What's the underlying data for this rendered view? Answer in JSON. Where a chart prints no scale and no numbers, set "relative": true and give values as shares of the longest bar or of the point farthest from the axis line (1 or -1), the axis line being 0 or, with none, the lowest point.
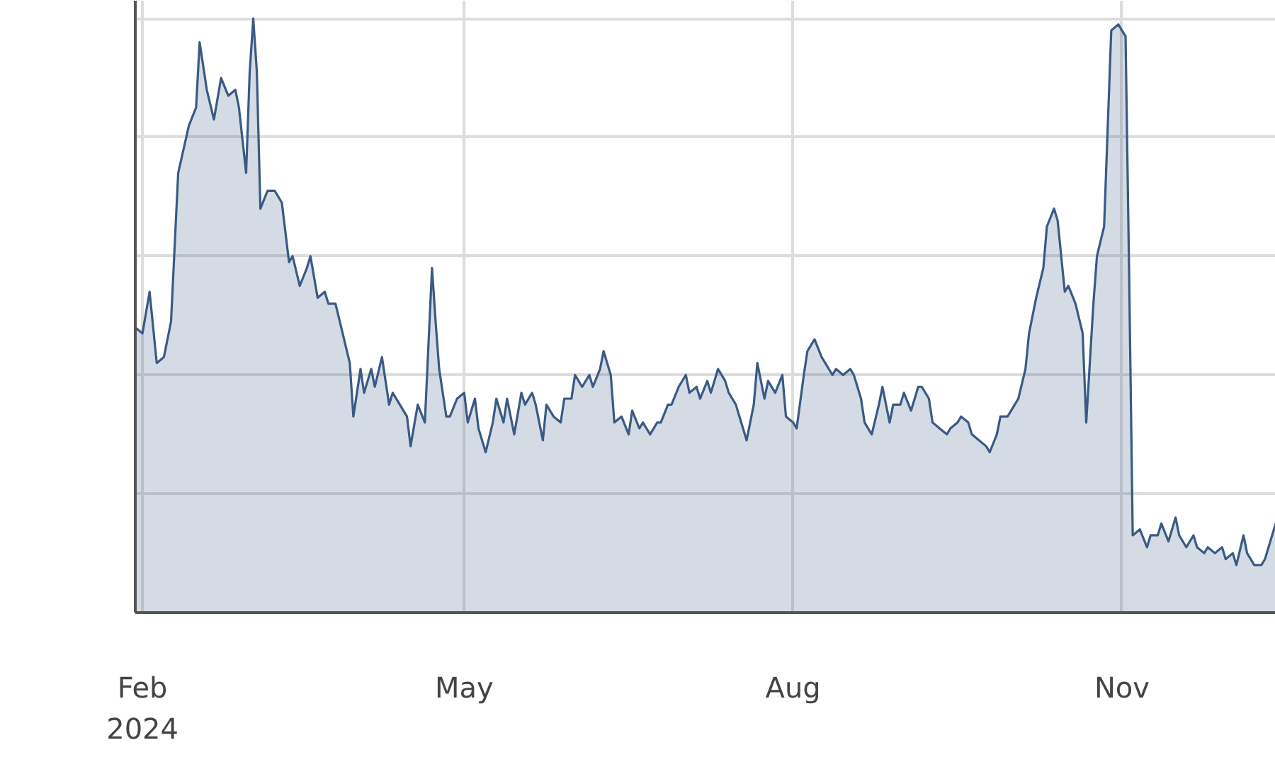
{
  "chart_data": {
    "type": "area",
    "relative": true,
    "grid": true,
    "xlim": [
      "2024-01-30",
      "2024-12-14"
    ],
    "xticks": [
      {
        "value": "2024-02-01",
        "label": "Feb\n2024"
      },
      {
        "value": "2024-05-01",
        "label": "May"
      },
      {
        "value": "2024-08-01",
        "label": "Aug"
      },
      {
        "value": "2024-11-01",
        "label": "Nov"
      }
    ],
    "x": [
      "2024-01-30",
      "2024-02-01",
      "2024-02-03",
      "2024-02-05",
      "2024-02-07",
      "2024-02-09",
      "2024-02-11",
      "2024-02-14",
      "2024-02-16",
      "2024-02-17",
      "2024-02-19",
      "2024-02-21",
      "2024-02-23",
      "2024-02-25",
      "2024-02-27",
      "2024-02-28",
      "2024-03-01",
      "2024-03-02",
      "2024-03-03",
      "2024-03-04",
      "2024-03-05",
      "2024-03-07",
      "2024-03-09",
      "2024-03-11",
      "2024-03-13",
      "2024-03-14",
      "2024-03-16",
      "2024-03-18",
      "2024-03-19",
      "2024-03-21",
      "2024-03-23",
      "2024-03-24",
      "2024-03-26",
      "2024-03-28",
      "2024-03-30",
      "2024-03-31",
      "2024-04-02",
      "2024-04-03",
      "2024-04-05",
      "2024-04-06",
      "2024-04-08",
      "2024-04-10",
      "2024-04-11",
      "2024-04-13",
      "2024-04-15",
      "2024-04-16",
      "2024-04-18",
      "2024-04-20",
      "2024-04-22",
      "2024-04-23",
      "2024-04-24",
      "2024-04-26",
      "2024-04-27",
      "2024-04-29",
      "2024-05-01",
      "2024-05-02",
      "2024-05-04",
      "2024-05-05",
      "2024-05-07",
      "2024-05-09",
      "2024-05-10",
      "2024-05-12",
      "2024-05-13",
      "2024-05-15",
      "2024-05-17",
      "2024-05-18",
      "2024-05-20",
      "2024-05-21",
      "2024-05-23",
      "2024-05-24",
      "2024-05-26",
      "2024-05-28",
      "2024-05-29",
      "2024-05-31",
      "2024-06-01",
      "2024-06-03",
      "2024-06-05",
      "2024-06-06",
      "2024-06-08",
      "2024-06-09",
      "2024-06-11",
      "2024-06-12",
      "2024-06-14",
      "2024-06-16",
      "2024-06-17",
      "2024-06-19",
      "2024-06-20",
      "2024-06-22",
      "2024-06-24",
      "2024-06-25",
      "2024-06-27",
      "2024-06-28",
      "2024-06-30",
      "2024-07-02",
      "2024-07-03",
      "2024-07-05",
      "2024-07-06",
      "2024-07-08",
      "2024-07-09",
      "2024-07-11",
      "2024-07-13",
      "2024-07-14",
      "2024-07-16",
      "2024-07-17",
      "2024-07-19",
      "2024-07-21",
      "2024-07-22",
      "2024-07-24",
      "2024-07-25",
      "2024-07-27",
      "2024-07-29",
      "2024-07-30",
      "2024-08-01",
      "2024-08-02",
      "2024-08-04",
      "2024-08-05",
      "2024-08-07",
      "2024-08-09",
      "2024-08-10",
      "2024-08-12",
      "2024-08-13",
      "2024-08-15",
      "2024-08-17",
      "2024-08-18",
      "2024-08-20",
      "2024-08-21",
      "2024-08-23",
      "2024-08-25",
      "2024-08-26",
      "2024-08-28",
      "2024-08-29",
      "2024-08-31",
      "2024-09-01",
      "2024-09-03",
      "2024-09-05",
      "2024-09-06",
      "2024-09-08",
      "2024-09-09",
      "2024-09-11",
      "2024-09-13",
      "2024-09-14",
      "2024-09-16",
      "2024-09-17",
      "2024-09-19",
      "2024-09-20",
      "2024-09-22",
      "2024-09-24",
      "2024-09-25",
      "2024-09-27",
      "2024-09-28",
      "2024-09-30",
      "2024-10-02",
      "2024-10-03",
      "2024-10-05",
      "2024-10-06",
      "2024-10-08",
      "2024-10-10",
      "2024-10-11",
      "2024-10-13",
      "2024-10-14",
      "2024-10-16",
      "2024-10-17",
      "2024-10-19",
      "2024-10-21",
      "2024-10-22",
      "2024-10-24",
      "2024-10-25",
      "2024-10-27",
      "2024-10-29",
      "2024-10-31",
      "2024-11-02",
      "2024-11-03",
      "2024-11-04",
      "2024-11-06",
      "2024-11-08",
      "2024-11-09",
      "2024-11-11",
      "2024-11-12",
      "2024-11-14",
      "2024-11-16",
      "2024-11-17",
      "2024-11-19",
      "2024-11-21",
      "2024-11-22",
      "2024-11-24",
      "2024-11-25",
      "2024-11-27",
      "2024-11-29",
      "2024-11-30",
      "2024-12-02",
      "2024-12-03",
      "2024-12-05",
      "2024-12-06",
      "2024-12-08",
      "2024-12-10",
      "2024-12-11",
      "2024-12-14"
    ],
    "series": [
      {
        "color": "#3a5a85",
        "values": [
          0.48,
          0.47,
          0.54,
          0.42,
          0.43,
          0.49,
          0.74,
          0.82,
          0.85,
          0.96,
          0.88,
          0.83,
          0.9,
          0.87,
          0.88,
          0.85,
          0.74,
          0.91,
          1.0,
          0.91,
          0.68,
          0.71,
          0.71,
          0.69,
          0.59,
          0.6,
          0.55,
          0.58,
          0.6,
          0.53,
          0.54,
          0.52,
          0.52,
          0.47,
          0.42,
          0.33,
          0.41,
          0.37,
          0.41,
          0.38,
          0.43,
          0.35,
          0.37,
          0.35,
          0.33,
          0.28,
          0.35,
          0.32,
          0.58,
          0.49,
          0.41,
          0.33,
          0.33,
          0.36,
          0.37,
          0.32,
          0.36,
          0.31,
          0.27,
          0.32,
          0.36,
          0.32,
          0.36,
          0.3,
          0.37,
          0.35,
          0.37,
          0.35,
          0.29,
          0.35,
          0.33,
          0.32,
          0.36,
          0.36,
          0.4,
          0.38,
          0.4,
          0.38,
          0.41,
          0.44,
          0.4,
          0.32,
          0.33,
          0.3,
          0.34,
          0.31,
          0.32,
          0.3,
          0.32,
          0.32,
          0.35,
          0.35,
          0.38,
          0.4,
          0.37,
          0.38,
          0.36,
          0.39,
          0.37,
          0.41,
          0.39,
          0.37,
          0.35,
          0.33,
          0.29,
          0.35,
          0.42,
          0.36,
          0.39,
          0.37,
          0.4,
          0.33,
          0.32,
          0.31,
          0.4,
          0.44,
          0.46,
          0.43,
          0.42,
          0.4,
          0.41,
          0.4,
          0.41,
          0.4,
          0.36,
          0.32,
          0.3,
          0.35,
          0.38,
          0.32,
          0.35,
          0.35,
          0.37,
          0.34,
          0.38,
          0.38,
          0.36,
          0.32,
          0.31,
          0.3,
          0.31,
          0.32,
          0.33,
          0.32,
          0.3,
          0.29,
          0.28,
          0.27,
          0.3,
          0.33,
          0.33,
          0.35,
          0.36,
          0.41,
          0.47,
          0.53,
          0.58,
          0.65,
          0.68,
          0.66,
          0.54,
          0.55,
          0.52,
          0.47,
          0.32,
          0.52,
          0.6,
          0.65,
          0.98,
          0.99,
          0.97,
          0.57,
          0.13,
          0.14,
          0.11,
          0.13,
          0.13,
          0.15,
          0.12,
          0.16,
          0.13,
          0.11,
          0.13,
          0.11,
          0.1,
          0.11,
          0.1,
          0.11,
          0.09,
          0.1,
          0.08,
          0.13,
          0.1,
          0.08,
          0.08,
          0.09,
          0.15
        ]
      }
    ]
  }
}
